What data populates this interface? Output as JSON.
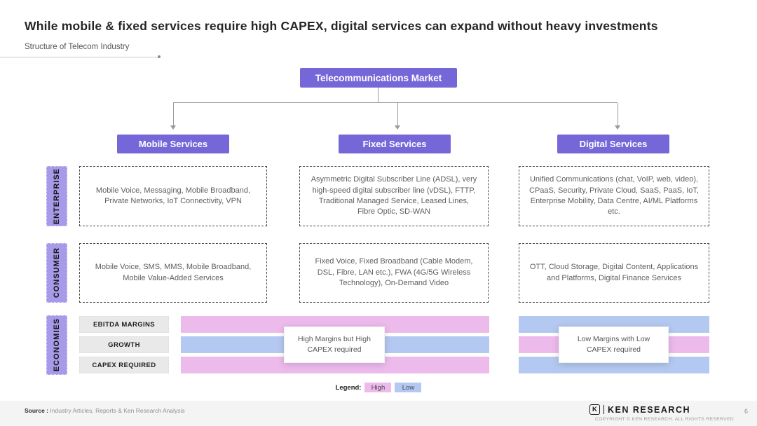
{
  "slide": {
    "title": "While mobile & fixed services require high CAPEX, digital services can expand without heavy investments",
    "subtitle": "Structure of Telecom Industry",
    "page_number": "6"
  },
  "diagram": {
    "root": "Telecommunications Market",
    "row_labels": [
      "ENTERPRISE",
      "CONSUMER",
      "ECONOMIES"
    ],
    "columns": [
      {
        "header": "Mobile Services",
        "enterprise": "Mobile Voice, Messaging, Mobile Broadband, Private Networks, IoT Connectivity, VPN",
        "consumer": "Mobile Voice, SMS, MMS, Mobile Broadband, Mobile Value-Added Services"
      },
      {
        "header": "Fixed Services",
        "enterprise": "Asymmetric Digital Subscriber Line (ADSL), very high-speed digital subscriber line (vDSL), FTTP, Traditional Managed Service, Leased Lines, Fibre Optic, SD-WAN",
        "consumer": "Fixed Voice, Fixed Broadband (Cable Modem, DSL, Fibre, LAN etc.), FWA (4G/5G Wireless Technology), On-Demand Video"
      },
      {
        "header": "Digital Services",
        "enterprise": "Unified Communications (chat, VoIP, web, video), CPaaS, Security, Private Cloud, SaaS, PaaS, IoT, Enterprise Mobility, Data Centre, AI/ML Platforms etc.",
        "consumer": "OTT, Cloud Storage, Digital Content, Applications and Platforms, Digital Finance Services"
      }
    ],
    "economies": {
      "metrics": [
        "EBITDA MARGINS",
        "GROWTH",
        "CAPEX REQUIRED"
      ],
      "mobile_fixed": {
        "values": [
          "High",
          "Low",
          "High"
        ],
        "note": "High Margins but High CAPEX required"
      },
      "digital": {
        "values": [
          "Low",
          "High",
          "Low"
        ],
        "note": "Low Margins with Low CAPEX required"
      }
    },
    "legend": {
      "label": "Legend:",
      "items": [
        "High",
        "Low"
      ]
    }
  },
  "footer": {
    "source_label": "Source :",
    "source_text": " Industry Articles, Reports & Ken Research Analysis",
    "brand_initial": "K",
    "brand_name": "KEN RESEARCH",
    "copyright": "COPYRIGHT © KEN RESEARCH. ALL RIGHTS RESERVED"
  },
  "colors": {
    "purple": "#7667d8",
    "label_purple": "#a79ae8",
    "high": "#edbaec",
    "low": "#b4c9f1",
    "metric_bg": "#e9e9e9",
    "footer_bg": "#f4f4f4"
  }
}
